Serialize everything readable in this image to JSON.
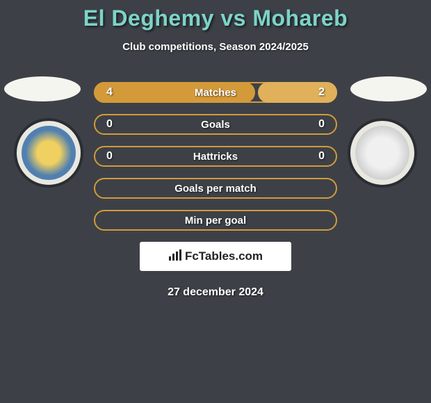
{
  "title": "El Deghemy vs Mohareb",
  "subtitle": "Club competitions, Season 2024/2025",
  "date": "27 december 2024",
  "logo": {
    "text": "FcTables.com",
    "icon": "chart-bar-icon"
  },
  "colors": {
    "accent": "#d49a3a",
    "accent_light": "#e0b05a",
    "title": "#7cd4c8",
    "text": "#ffffff",
    "bg": "#3d4147"
  },
  "player_left": {
    "avatar": "blank-oval",
    "club_icon": "club-crest-1"
  },
  "player_right": {
    "avatar": "blank-oval",
    "club_icon": "club-crest-2"
  },
  "rows": [
    {
      "label": "Matches",
      "left": "4",
      "right": "2",
      "left_pct": 67,
      "right_pct": 33,
      "show_fill": true
    },
    {
      "label": "Goals",
      "left": "0",
      "right": "0",
      "left_pct": 0,
      "right_pct": 0,
      "show_fill": false
    },
    {
      "label": "Hattricks",
      "left": "0",
      "right": "0",
      "left_pct": 0,
      "right_pct": 0,
      "show_fill": false
    },
    {
      "label": "Goals per match",
      "left": "",
      "right": "",
      "left_pct": 0,
      "right_pct": 0,
      "show_fill": false
    },
    {
      "label": "Min per goal",
      "left": "",
      "right": "",
      "left_pct": 0,
      "right_pct": 0,
      "show_fill": false
    }
  ]
}
